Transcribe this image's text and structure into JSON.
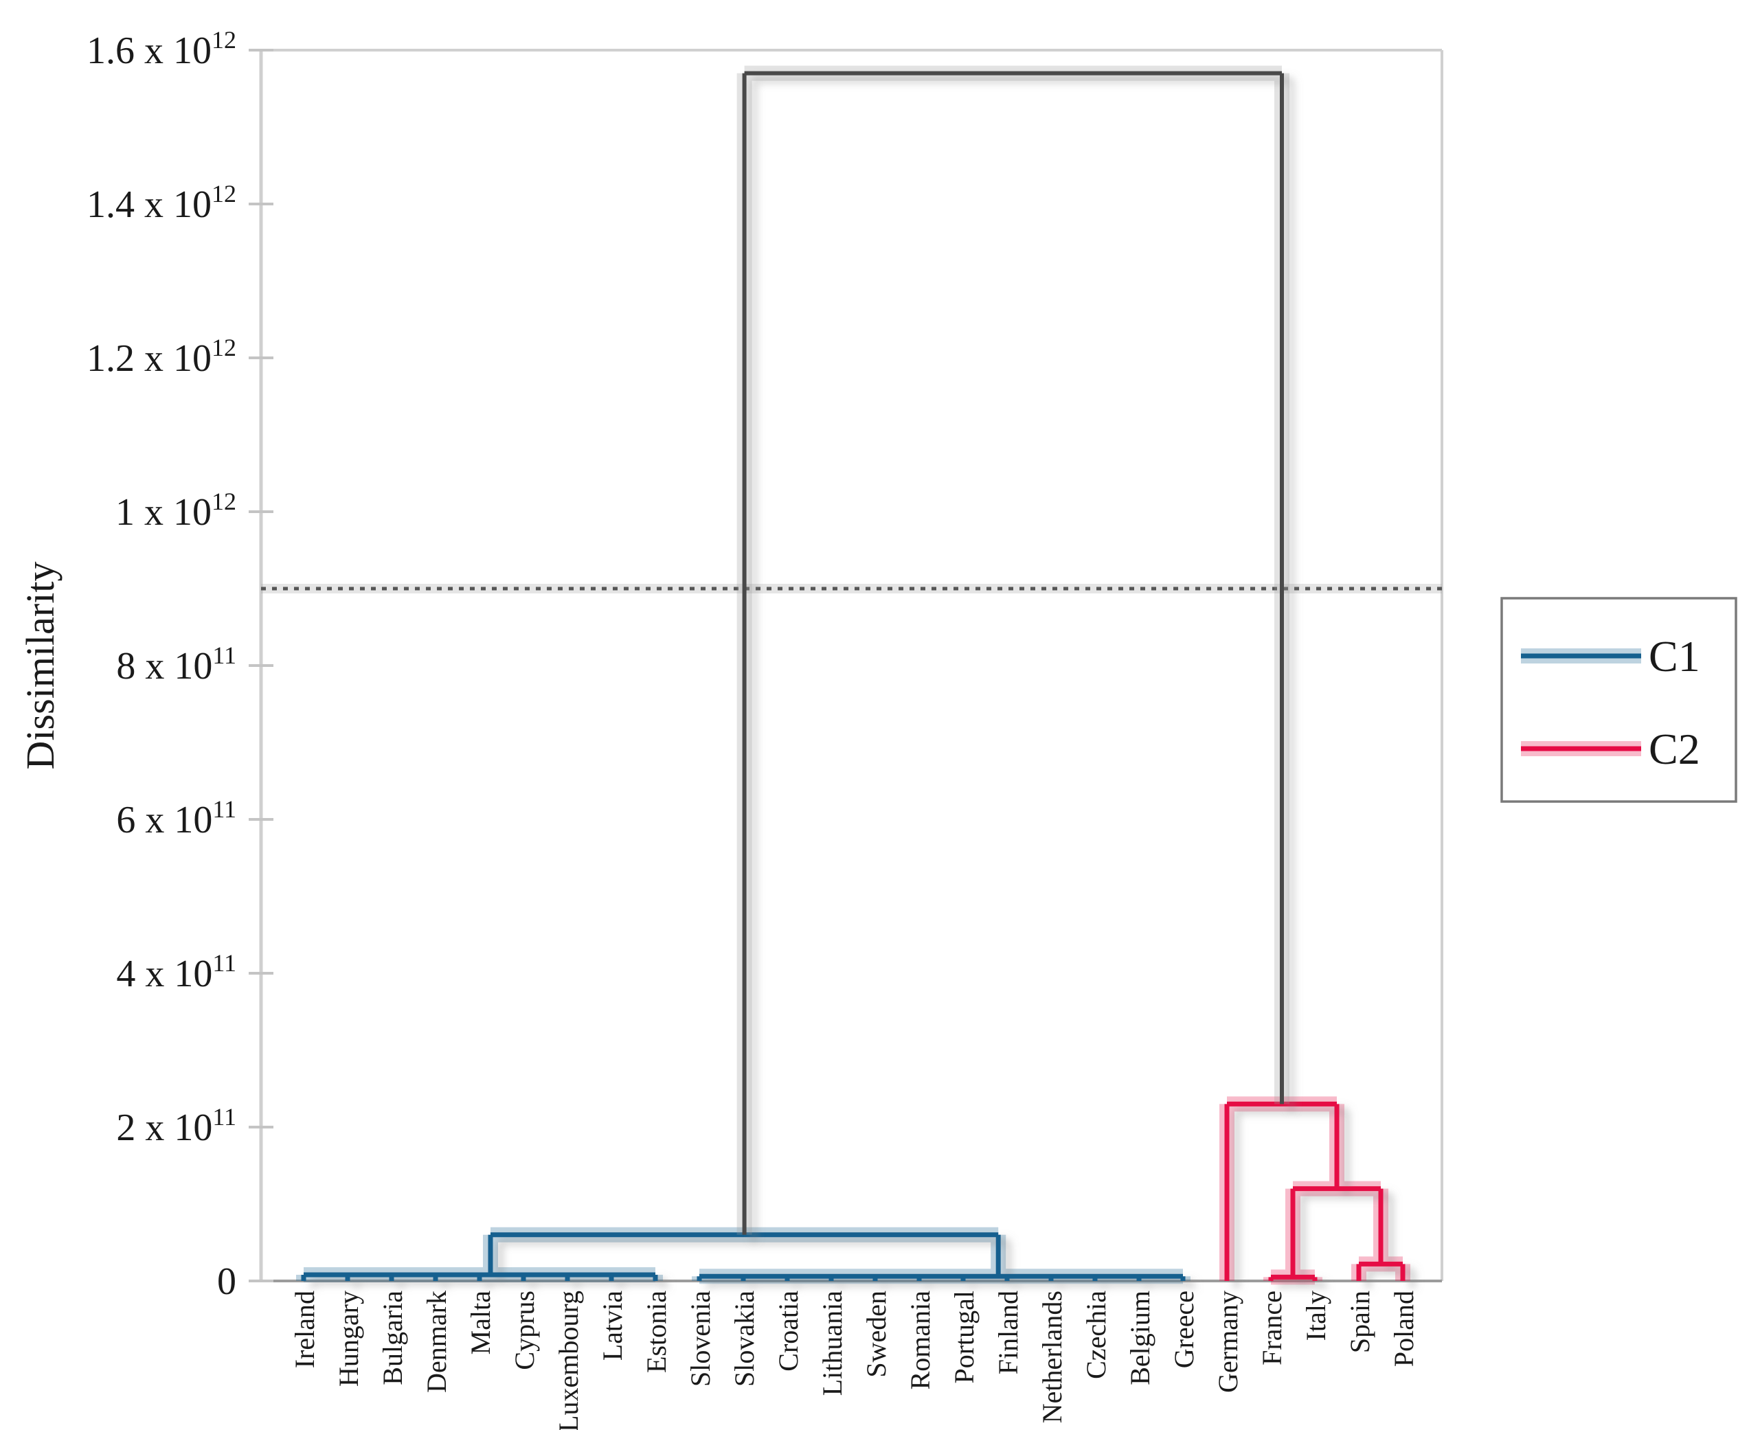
{
  "chart_data": {
    "type": "dendrogram",
    "title": "",
    "ylabel": "Dissimilarity",
    "ylim": [
      0,
      1600000000000.0
    ],
    "grid": "off",
    "legend_position": "right",
    "yticks": [
      {
        "value": 0,
        "mantissa": "0",
        "exponent": ""
      },
      {
        "value": 200000000000.0,
        "mantissa": "2 x 10",
        "exponent": "11"
      },
      {
        "value": 400000000000.0,
        "mantissa": "4 x 10",
        "exponent": "11"
      },
      {
        "value": 600000000000.0,
        "mantissa": "6 x 10",
        "exponent": "11"
      },
      {
        "value": 800000000000.0,
        "mantissa": "8 x 10",
        "exponent": "11"
      },
      {
        "value": 1000000000000.0,
        "mantissa": "1 x 10",
        "exponent": "12"
      },
      {
        "value": 1200000000000.0,
        "mantissa": "1.2 x 10",
        "exponent": "12"
      },
      {
        "value": 1400000000000.0,
        "mantissa": "1.4 x 10",
        "exponent": "12"
      },
      {
        "value": 1600000000000.0,
        "mantissa": "1.6 x 10",
        "exponent": "12"
      }
    ],
    "categories": [
      "Ireland",
      "Hungary",
      "Bulgaria",
      "Denmark",
      "Malta",
      "Cyprus",
      "Luxembourg",
      "Latvia",
      "Estonia",
      "Slovenia",
      "Slovakia",
      "Croatia",
      "Lithuania",
      "Sweden",
      "Romania",
      "Portugal",
      "Finland",
      "Netherlands",
      "Czechia",
      "Belgium",
      "Greece",
      "Germany",
      "France",
      "Italy",
      "Spain",
      "Poland"
    ],
    "threshold_line": {
      "value": 900000000000.0,
      "style": "dashed"
    },
    "legend": {
      "items": [
        {
          "label": "C1",
          "color": "#16608f"
        },
        {
          "label": "C2",
          "color": "#e60a44"
        }
      ]
    },
    "clusters": {
      "C1": {
        "name": "C1",
        "color": "#16608f",
        "members": [
          "Ireland",
          "Hungary",
          "Bulgaria",
          "Denmark",
          "Malta",
          "Cyprus",
          "Luxembourg",
          "Latvia",
          "Estonia",
          "Slovenia",
          "Slovakia",
          "Croatia",
          "Lithuania",
          "Sweden",
          "Romania",
          "Portugal",
          "Finland",
          "Netherlands",
          "Czechia",
          "Belgium",
          "Greece"
        ],
        "merges": [
          {
            "id": "C1-left",
            "children": [
              "Ireland",
              "Hungary",
              "Bulgaria",
              "Denmark",
              "Malta",
              "Cyprus",
              "Luxembourg",
              "Latvia",
              "Estonia"
            ],
            "height": 8000000000.0,
            "pos": 4.25
          },
          {
            "id": "C1-right",
            "children": [
              "Slovenia",
              "Slovakia",
              "Croatia",
              "Lithuania",
              "Sweden",
              "Romania",
              "Portugal",
              "Finland",
              "Netherlands",
              "Czechia",
              "Belgium",
              "Greece"
            ],
            "height": 6000000000.0,
            "pos": 15.8
          },
          {
            "id": "C1-top",
            "children": [
              "C1-left",
              "C1-right"
            ],
            "height": 60000000000.0
          }
        ]
      },
      "C2": {
        "name": "C2",
        "color": "#e60a44",
        "members": [
          "Germany",
          "France",
          "Italy",
          "Spain",
          "Poland"
        ],
        "merges": [
          {
            "id": "C2-france-italy",
            "children": [
              "France",
              "Italy"
            ],
            "height": 5000000000.0
          },
          {
            "id": "C2-spain-poland",
            "children": [
              "Spain",
              "Poland"
            ],
            "height": 22000000000.0
          },
          {
            "id": "C2-mid",
            "children": [
              "C2-france-italy",
              "C2-spain-poland"
            ],
            "height": 120000000000.0
          },
          {
            "id": "C2-top",
            "children": [
              "Germany",
              "C2-mid"
            ],
            "height": 230000000000.0
          }
        ]
      }
    },
    "root_merge": {
      "id": "root",
      "children": [
        "C1-top",
        "C2-top"
      ],
      "height": 1570000000000.0,
      "color": "#4a4a4a"
    }
  }
}
